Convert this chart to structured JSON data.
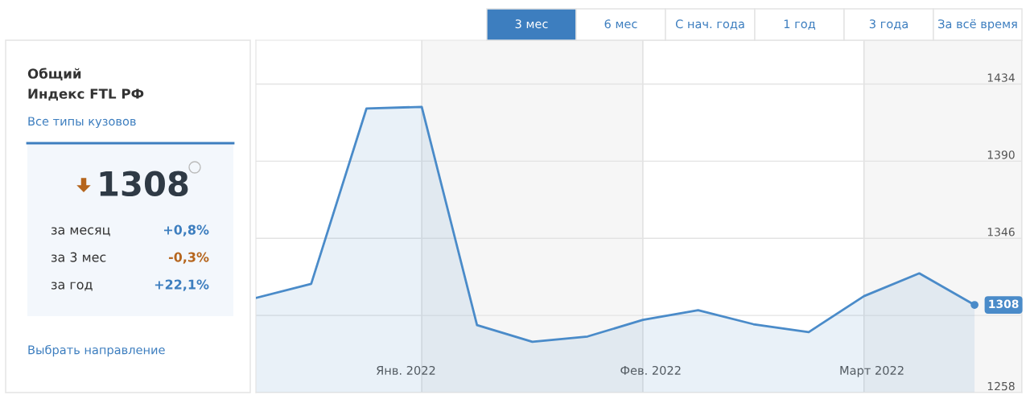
{
  "chart_data": {
    "type": "area",
    "title": "Общий",
    "subtitle": "Индекс FTL РФ",
    "x": [
      "2021-12-13",
      "2021-12-20",
      "2021-12-27",
      "2022-01-03",
      "2022-01-10",
      "2022-01-17",
      "2022-01-24",
      "2022-01-31",
      "2022-02-07",
      "2022-02-14",
      "2022-02-21",
      "2022-02-28",
      "2022-03-07",
      "2022-03-14"
    ],
    "series": [
      {
        "color": "#4a8bc9",
        "values": [
          1312,
          1320,
          1420,
          1421,
          1296.5,
          1287,
          1290,
          1299.5,
          1305,
          1297,
          1292.5,
          1313,
          1326,
          1308
        ],
        "value_labels": [
          null,
          null,
          null,
          null,
          null,
          null,
          null,
          null,
          null,
          null,
          null,
          null,
          null,
          "1308"
        ]
      }
    ],
    "xlim": [
      "2021-12-13",
      "2022-03-20"
    ],
    "xticks": [
      {
        "value": "2022-01-01",
        "label": "Янв. 2022"
      },
      {
        "value": "2022-02-01",
        "label": "Фев. 2022"
      },
      {
        "value": "2022-03-01",
        "label": "Март 2022"
      }
    ],
    "ylim": [
      1258,
      1459
    ],
    "yticks": [
      1258,
      {
        "value": 1302,
        "label": null
      },
      1346,
      1390,
      1434
    ],
    "grid": "y",
    "bands": [
      {
        "axis": "x",
        "from": "2022-01-03",
        "to": "2022-01-31",
        "color": "#f6f6f6"
      },
      {
        "axis": "x",
        "from": "2022-02-28",
        "to": "2022-03-20",
        "color": "#f6f6f6"
      }
    ],
    "annotations": [
      "Все типы кузовов",
      "1308",
      "за месяц",
      "+0,8%",
      "за 3 мес",
      "-0,3%",
      "за год",
      "+22,1%",
      "Выбрать направление",
      "3 мес",
      "6 мес",
      "С нач. года",
      "1 год",
      "3 года",
      "За всё время"
    ]
  }
}
